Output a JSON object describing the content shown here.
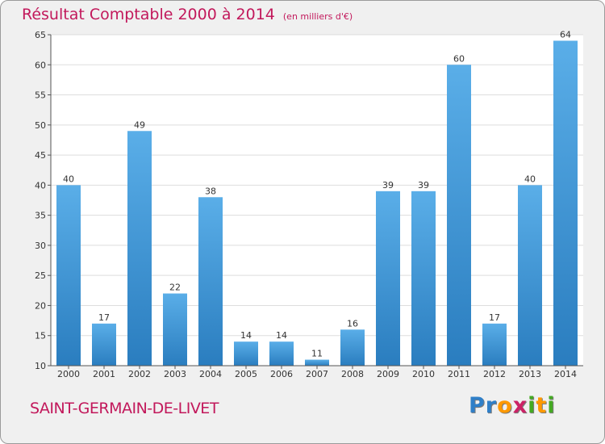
{
  "chart_data": {
    "type": "bar",
    "title": "Résultat Comptable 2000 à 2014",
    "subtitle": "(en milliers d'€)",
    "categories": [
      "2000",
      "2001",
      "2002",
      "2003",
      "2004",
      "2005",
      "2006",
      "2007",
      "2008",
      "2009",
      "2010",
      "2011",
      "2012",
      "2013",
      "2014"
    ],
    "values": [
      40,
      17,
      49,
      22,
      38,
      14,
      14,
      11,
      16,
      39,
      39,
      60,
      17,
      40,
      64
    ],
    "ylim": [
      10,
      65
    ],
    "yticks": [
      10,
      15,
      20,
      25,
      30,
      35,
      40,
      45,
      50,
      55,
      60,
      65
    ],
    "grid": true,
    "xlabel": "",
    "ylabel": ""
  },
  "footer": {
    "place_name": "SAINT-GERMAIN-DE-LIVET",
    "logo_letters": [
      "P",
      "r",
      "o",
      "x",
      "i",
      "t",
      "i"
    ]
  },
  "colors": {
    "bar_top": "#5aaee8",
    "bar_bottom": "#2a7dbf",
    "title": "#c2185b",
    "logo": [
      "#2f7fc8",
      "#2f7fc8",
      "#ff9900",
      "#cc2266",
      "#44aa22",
      "#ff9900",
      "#44aa22"
    ]
  }
}
